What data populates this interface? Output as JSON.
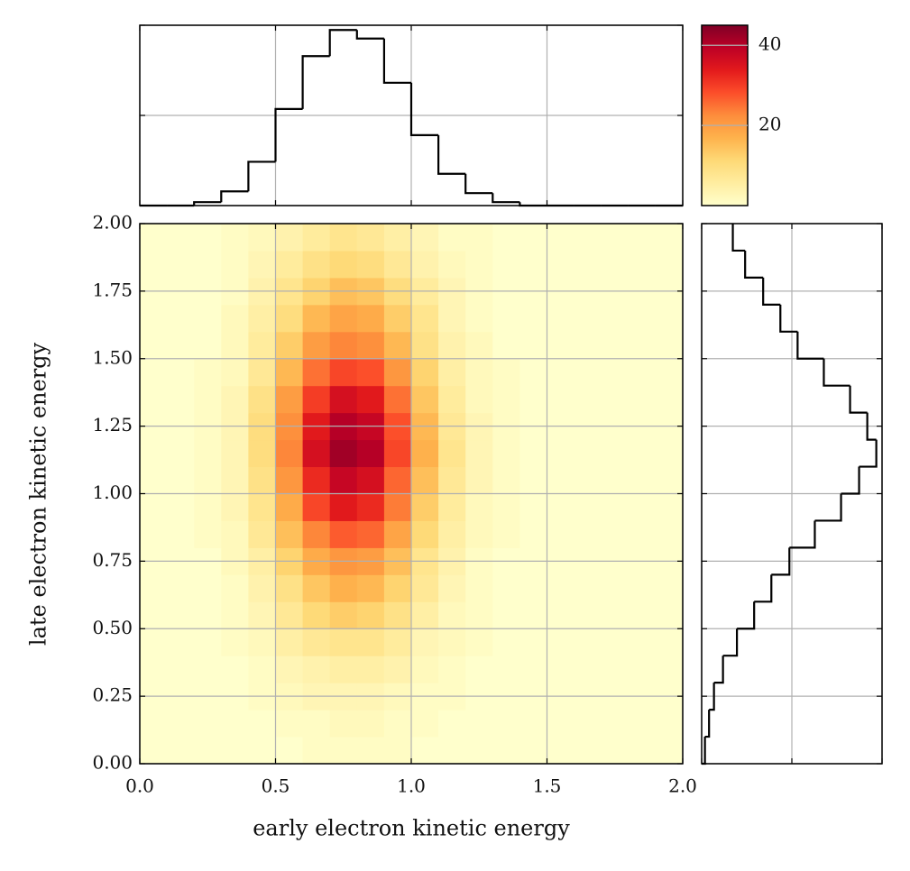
{
  "chart_data": [
    {
      "type": "heatmap",
      "xlabel": "early electron kinetic energy",
      "ylabel": "late electron kinetic energy",
      "xbins": [
        0,
        0.1,
        0.2,
        0.3,
        0.4,
        0.5,
        0.6,
        0.7,
        0.8,
        0.9,
        1.0,
        1.1,
        1.2,
        1.3,
        1.4,
        1.5,
        1.6,
        1.7,
        1.8,
        1.9,
        2.0
      ],
      "ybins": [
        0,
        0.1,
        0.2,
        0.3,
        0.4,
        0.5,
        0.6,
        0.7,
        0.8,
        0.9,
        1.0,
        1.1,
        1.2,
        1.3,
        1.4,
        1.5,
        1.6,
        1.7,
        1.8,
        1.9,
        2.0
      ],
      "z": [
        [
          0,
          0,
          0,
          0,
          0,
          0,
          1,
          1,
          1,
          1,
          0,
          0,
          0,
          0,
          0,
          0,
          0,
          0,
          0,
          0
        ],
        [
          0,
          0,
          0,
          0,
          0,
          1,
          1,
          2,
          2,
          1,
          1,
          0,
          0,
          0,
          0,
          0,
          0,
          0,
          0,
          0
        ],
        [
          0,
          0,
          0,
          0,
          1,
          2,
          3,
          3,
          3,
          2,
          1,
          1,
          0,
          0,
          0,
          0,
          0,
          0,
          0,
          0
        ],
        [
          0,
          0,
          0,
          0,
          1,
          3,
          4,
          5,
          5,
          4,
          2,
          1,
          0,
          0,
          0,
          0,
          0,
          0,
          0,
          0
        ],
        [
          0,
          0,
          0,
          1,
          2,
          5,
          7,
          8,
          8,
          6,
          3,
          2,
          1,
          0,
          0,
          0,
          0,
          0,
          0,
          0
        ],
        [
          0,
          0,
          0,
          1,
          3,
          7,
          11,
          13,
          12,
          9,
          5,
          2,
          1,
          0,
          0,
          0,
          0,
          0,
          0,
          0
        ],
        [
          0,
          0,
          0,
          1,
          4,
          9,
          14,
          17,
          16,
          12,
          7,
          3,
          1,
          0,
          0,
          0,
          0,
          0,
          0,
          0
        ],
        [
          0,
          0,
          0,
          2,
          5,
          12,
          18,
          21,
          20,
          15,
          8,
          4,
          1,
          0,
          0,
          0,
          0,
          0,
          0,
          0
        ],
        [
          0,
          0,
          1,
          2,
          7,
          15,
          23,
          27,
          26,
          19,
          11,
          5,
          2,
          1,
          0,
          0,
          0,
          0,
          0,
          0
        ],
        [
          0,
          0,
          1,
          3,
          8,
          18,
          29,
          34,
          32,
          24,
          13,
          6,
          2,
          1,
          0,
          0,
          0,
          0,
          0,
          0
        ],
        [
          0,
          0,
          1,
          3,
          9,
          21,
          32,
          38,
          36,
          26,
          15,
          7,
          3,
          1,
          0,
          0,
          0,
          0,
          0,
          0
        ],
        [
          0,
          0,
          1,
          3,
          10,
          23,
          36,
          42,
          40,
          29,
          17,
          8,
          3,
          1,
          0,
          0,
          0,
          0,
          0,
          0
        ],
        [
          0,
          0,
          1,
          3,
          10,
          22,
          34,
          40,
          38,
          28,
          16,
          7,
          3,
          1,
          0,
          0,
          0,
          0,
          0,
          0
        ],
        [
          0,
          0,
          1,
          3,
          9,
          20,
          30,
          36,
          34,
          25,
          14,
          6,
          2,
          1,
          0,
          0,
          0,
          0,
          0,
          0
        ],
        [
          0,
          0,
          1,
          2,
          7,
          16,
          25,
          29,
          28,
          21,
          12,
          5,
          2,
          1,
          0,
          0,
          0,
          0,
          0,
          0
        ],
        [
          0,
          0,
          0,
          2,
          6,
          13,
          20,
          23,
          22,
          16,
          9,
          4,
          2,
          0,
          0,
          0,
          0,
          0,
          0,
          0
        ],
        [
          0,
          0,
          0,
          2,
          5,
          10,
          16,
          19,
          18,
          13,
          8,
          3,
          1,
          0,
          0,
          0,
          0,
          0,
          0,
          0
        ],
        [
          0,
          0,
          0,
          1,
          4,
          8,
          12,
          15,
          14,
          10,
          6,
          3,
          1,
          0,
          0,
          0,
          0,
          0,
          0,
          0
        ],
        [
          0,
          0,
          0,
          1,
          3,
          6,
          9,
          11,
          10,
          7,
          4,
          2,
          1,
          0,
          0,
          0,
          0,
          0,
          0,
          0
        ],
        [
          0,
          0,
          0,
          1,
          2,
          4,
          6,
          8,
          7,
          5,
          3,
          1,
          1,
          0,
          0,
          0,
          0,
          0,
          0,
          0
        ]
      ],
      "xlim": [
        0,
        2
      ],
      "ylim": [
        0,
        2
      ],
      "xticks": [
        {
          "value": 0,
          "label": "0.0"
        },
        0.5,
        {
          "value": 1,
          "label": "1.0"
        },
        1.5,
        {
          "value": 2,
          "label": "2.0"
        }
      ],
      "yticks": [
        {
          "value": 0,
          "label": "0.00"
        },
        0.25,
        {
          "value": 0.5,
          "label": "0.50"
        },
        0.75,
        {
          "value": 1,
          "label": "1.00"
        },
        1.25,
        {
          "value": 1.5,
          "label": "1.50"
        },
        1.75,
        {
          "value": 2,
          "label": "2.00"
        }
      ],
      "grid": true,
      "colormap": [
        "#ffffcc",
        "#ffeda0",
        "#fed976",
        "#feb24c",
        "#fd8d3c",
        "#fc4e2a",
        "#e31a1c",
        "#bd0026",
        "#800026"
      ],
      "clim": [
        0,
        45
      ],
      "cticks": [
        20,
        40
      ]
    },
    {
      "type": "histogram",
      "orientation": "vertical",
      "bins": [
        0,
        0.1,
        0.2,
        0.3,
        0.4,
        0.5,
        0.6,
        0.7,
        0.8,
        0.9,
        1.0,
        1.1,
        1.2,
        1.3,
        1.4,
        1.5,
        1.6,
        1.7,
        1.8,
        1.9,
        2.0
      ],
      "counts": [
        0,
        0,
        8,
        33,
        102,
        225,
        348,
        409,
        389,
        286,
        164,
        74,
        29,
        8,
        0,
        0,
        0,
        0,
        0,
        0
      ],
      "xlim": [
        0,
        2
      ],
      "ylim": [
        0,
        420
      ],
      "xticks": [
        0,
        0.5,
        1,
        1.5,
        2
      ],
      "yticks": [
        0,
        210,
        420
      ],
      "color": "#000000",
      "grid": true
    },
    {
      "type": "histogram",
      "orientation": "horizontal",
      "bins": [
        0,
        0.1,
        0.2,
        0.3,
        0.4,
        0.5,
        0.6,
        0.7,
        0.8,
        0.9,
        1.0,
        1.1,
        1.2,
        1.3,
        1.4,
        1.5,
        1.6,
        1.7,
        1.8,
        1.9,
        2.0
      ],
      "counts": [
        4,
        9,
        15,
        26,
        43,
        64,
        85,
        107,
        138,
        170,
        192,
        213,
        202,
        181,
        149,
        117,
        96,
        75,
        53,
        38
      ],
      "ylim": [
        0,
        2
      ],
      "xlim": [
        0,
        220
      ],
      "yticks": [
        0,
        0.25,
        0.5,
        0.75,
        1,
        1.25,
        1.5,
        1.75,
        2
      ],
      "xticks": [
        0,
        110,
        220
      ],
      "color": "#000000",
      "grid": true
    }
  ]
}
